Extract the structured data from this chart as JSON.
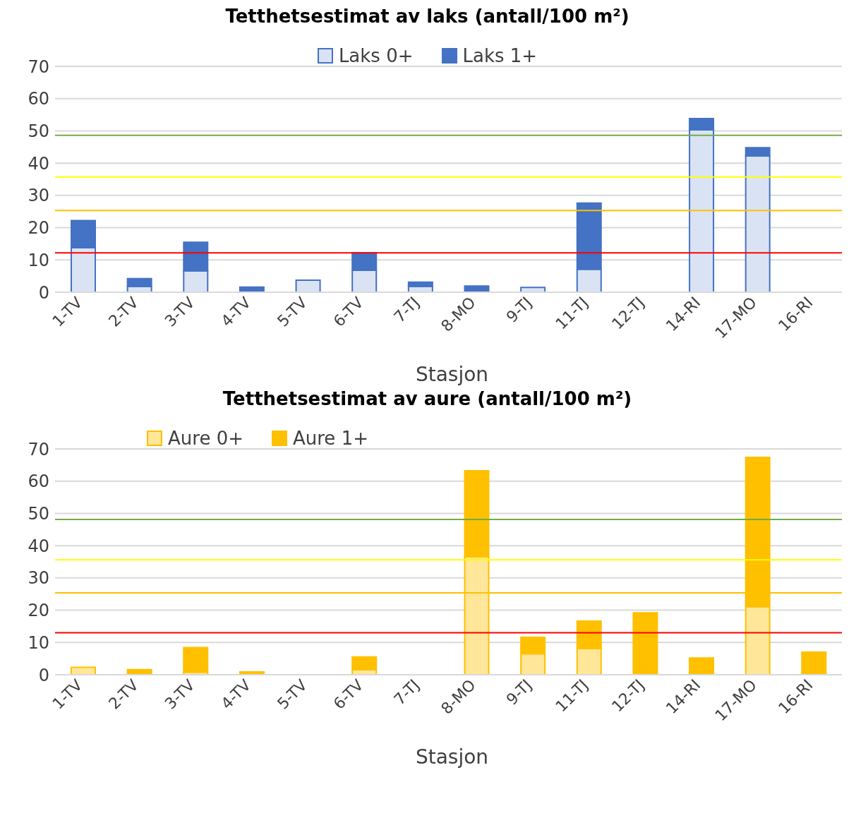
{
  "chart_data": [
    {
      "type": "bar",
      "title": "Tetthetsestimat av laks (antall/100 m²)",
      "xlabel": "Stasjon",
      "categories": [
        "1-TV",
        "2-TV",
        "3-TV",
        "4-TV",
        "5-TV",
        "6-TV",
        "7-TJ",
        "8-MO",
        "9-TJ",
        "11-TJ",
        "12-TJ",
        "14-RI",
        "17-MO",
        "16-RI"
      ],
      "stacked": true,
      "ylim": [
        0,
        70
      ],
      "yticks": [
        0,
        10,
        20,
        30,
        40,
        50,
        60,
        70
      ],
      "grid": "y",
      "legend": "top",
      "series": [
        {
          "name": "Laks 0+",
          "color": "#dae3f3",
          "values": [
            13.8,
            1.8,
            6.6,
            0,
            3.7,
            6.8,
            1.8,
            0,
            1.5,
            7.1,
            0,
            50.3,
            42.2,
            0
          ]
        },
        {
          "name": "Laks 1+",
          "color": "#4472c4",
          "values": [
            8.4,
            2.4,
            8.9,
            1.6,
            0,
            5.4,
            1.3,
            1.9,
            0,
            20.5,
            0,
            3.5,
            2.6,
            0
          ]
        }
      ],
      "ref_lines": [
        {
          "axis": "y",
          "value": 48.6,
          "color": "#70ad47"
        },
        {
          "axis": "y",
          "value": 35.7,
          "color": "#ffff00"
        },
        {
          "axis": "y",
          "value": 25.3,
          "color": "#ffc000"
        },
        {
          "axis": "y",
          "value": 12.2,
          "color": "#ff0000"
        }
      ]
    },
    {
      "type": "bar",
      "title": "Tetthetsestimat av aure (antall/100 m²)",
      "xlabel": "Stasjon",
      "categories": [
        "1-TV",
        "2-TV",
        "3-TV",
        "4-TV",
        "5-TV",
        "6-TV",
        "7-TJ",
        "8-MO",
        "9-TJ",
        "11-TJ",
        "12-TJ",
        "14-RI",
        "17-MO",
        "16-RI"
      ],
      "stacked": true,
      "ylim": [
        0,
        70
      ],
      "yticks": [
        0,
        10,
        20,
        30,
        40,
        50,
        60,
        70
      ],
      "grid": "y",
      "legend": "top left",
      "series": [
        {
          "name": "Aure 0+",
          "color": "#ffe699",
          "values": [
            2.3,
            0,
            0.8,
            0,
            0,
            1.6,
            0,
            36.6,
            6.5,
            8.1,
            0,
            0,
            21.1,
            0
          ]
        },
        {
          "name": "Aure 1+",
          "color": "#ffc000",
          "values": [
            0,
            1.6,
            7.6,
            0.9,
            0,
            3.9,
            0,
            26.6,
            5.1,
            8.5,
            19.2,
            5.2,
            46.3,
            7.0
          ]
        }
      ],
      "ref_lines": [
        {
          "axis": "y",
          "value": 48.1,
          "color": "#70ad47"
        },
        {
          "axis": "y",
          "value": 35.6,
          "color": "#ffff00"
        },
        {
          "axis": "y",
          "value": 25.4,
          "color": "#ffc000"
        },
        {
          "axis": "y",
          "value": 13.0,
          "color": "#ff0000"
        }
      ]
    }
  ]
}
